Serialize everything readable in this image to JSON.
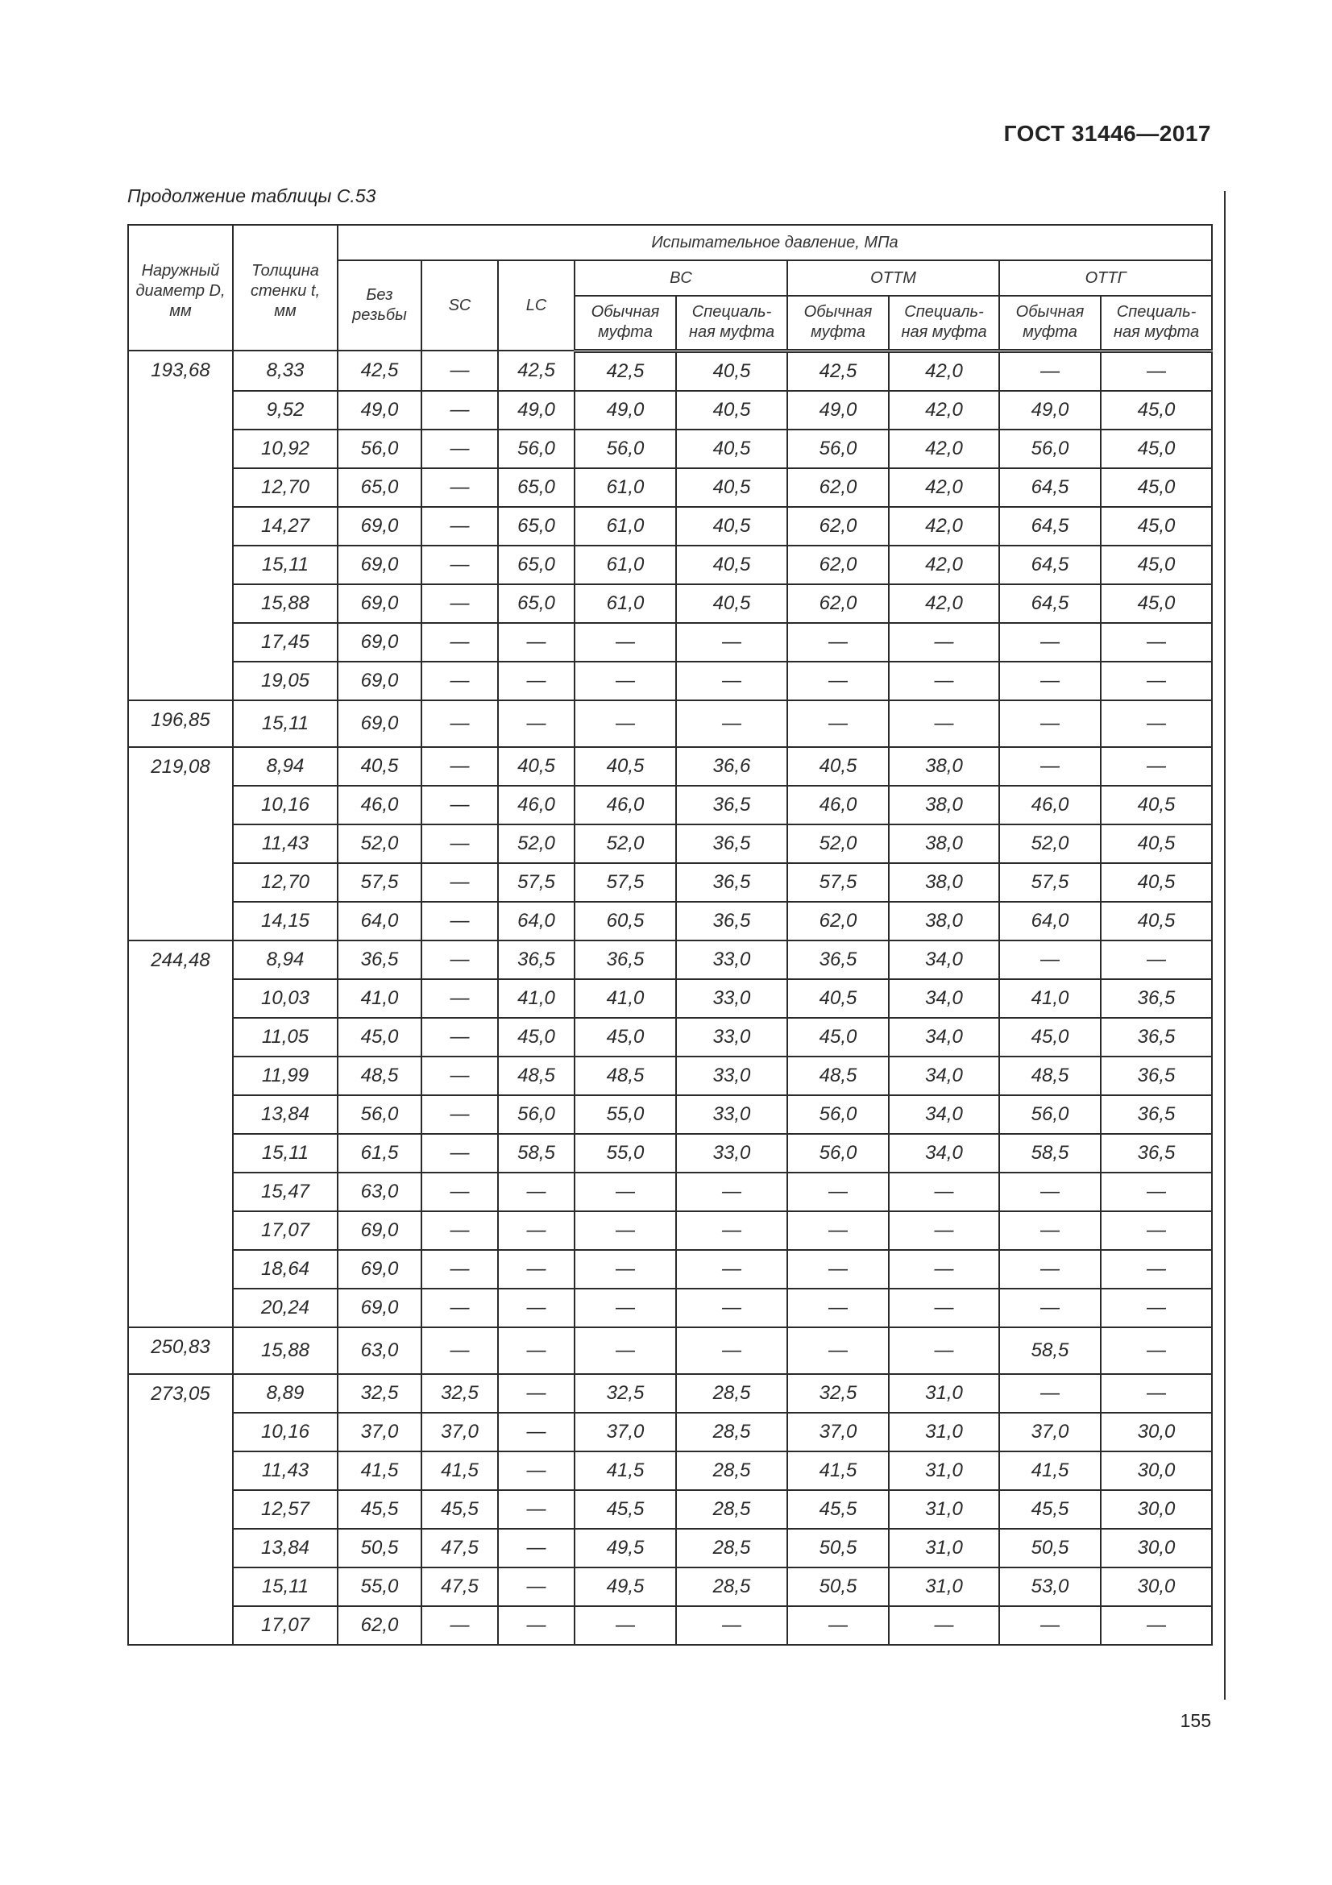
{
  "header": {
    "doc_code": "ГОСТ 31446—2017",
    "caption": "Продолжение таблицы С.53"
  },
  "table": {
    "col_diameter": "Наружный диаметр D, мм",
    "col_thickness": "Толщина стенки t, мм",
    "col_group_pressure": "Испытательное давление, МПа",
    "col_plain": "Без резьбы",
    "col_sc": "SC",
    "col_lc": "LC",
    "group_bc": "BC",
    "group_ottm": "ОТТМ",
    "group_ottg": "ОТТГ",
    "sub_regular": "Обычная муфта",
    "sub_special": "Специаль-ная муфта",
    "groups": [
      {
        "diameter": "193,68",
        "rows": [
          [
            "8,33",
            "42,5",
            "—",
            "42,5",
            "42,5",
            "40,5",
            "42,5",
            "42,0",
            "—",
            "—"
          ],
          [
            "9,52",
            "49,0",
            "—",
            "49,0",
            "49,0",
            "40,5",
            "49,0",
            "42,0",
            "49,0",
            "45,0"
          ],
          [
            "10,92",
            "56,0",
            "—",
            "56,0",
            "56,0",
            "40,5",
            "56,0",
            "42,0",
            "56,0",
            "45,0"
          ],
          [
            "12,70",
            "65,0",
            "—",
            "65,0",
            "61,0",
            "40,5",
            "62,0",
            "42,0",
            "64,5",
            "45,0"
          ],
          [
            "14,27",
            "69,0",
            "—",
            "65,0",
            "61,0",
            "40,5",
            "62,0",
            "42,0",
            "64,5",
            "45,0"
          ],
          [
            "15,11",
            "69,0",
            "—",
            "65,0",
            "61,0",
            "40,5",
            "62,0",
            "42,0",
            "64,5",
            "45,0"
          ],
          [
            "15,88",
            "69,0",
            "—",
            "65,0",
            "61,0",
            "40,5",
            "62,0",
            "42,0",
            "64,5",
            "45,0"
          ],
          [
            "17,45",
            "69,0",
            "—",
            "—",
            "—",
            "—",
            "—",
            "—",
            "—",
            "—"
          ],
          [
            "19,05",
            "69,0",
            "—",
            "—",
            "—",
            "—",
            "—",
            "—",
            "—",
            "—"
          ]
        ]
      },
      {
        "diameter": "196,85",
        "rows": [
          [
            "15,11",
            "69,0",
            "—",
            "—",
            "—",
            "—",
            "—",
            "—",
            "—",
            "—"
          ]
        ]
      },
      {
        "diameter": "219,08",
        "rows": [
          [
            "8,94",
            "40,5",
            "—",
            "40,5",
            "40,5",
            "36,6",
            "40,5",
            "38,0",
            "—",
            "—"
          ],
          [
            "10,16",
            "46,0",
            "—",
            "46,0",
            "46,0",
            "36,5",
            "46,0",
            "38,0",
            "46,0",
            "40,5"
          ],
          [
            "11,43",
            "52,0",
            "—",
            "52,0",
            "52,0",
            "36,5",
            "52,0",
            "38,0",
            "52,0",
            "40,5"
          ],
          [
            "12,70",
            "57,5",
            "—",
            "57,5",
            "57,5",
            "36,5",
            "57,5",
            "38,0",
            "57,5",
            "40,5"
          ],
          [
            "14,15",
            "64,0",
            "—",
            "64,0",
            "60,5",
            "36,5",
            "62,0",
            "38,0",
            "64,0",
            "40,5"
          ]
        ]
      },
      {
        "diameter": "244,48",
        "rows": [
          [
            "8,94",
            "36,5",
            "—",
            "36,5",
            "36,5",
            "33,0",
            "36,5",
            "34,0",
            "—",
            "—"
          ],
          [
            "10,03",
            "41,0",
            "—",
            "41,0",
            "41,0",
            "33,0",
            "40,5",
            "34,0",
            "41,0",
            "36,5"
          ],
          [
            "11,05",
            "45,0",
            "—",
            "45,0",
            "45,0",
            "33,0",
            "45,0",
            "34,0",
            "45,0",
            "36,5"
          ],
          [
            "11,99",
            "48,5",
            "—",
            "48,5",
            "48,5",
            "33,0",
            "48,5",
            "34,0",
            "48,5",
            "36,5"
          ],
          [
            "13,84",
            "56,0",
            "—",
            "56,0",
            "55,0",
            "33,0",
            "56,0",
            "34,0",
            "56,0",
            "36,5"
          ],
          [
            "15,11",
            "61,5",
            "—",
            "58,5",
            "55,0",
            "33,0",
            "56,0",
            "34,0",
            "58,5",
            "36,5"
          ],
          [
            "15,47",
            "63,0",
            "—",
            "—",
            "—",
            "—",
            "—",
            "—",
            "—",
            "—"
          ],
          [
            "17,07",
            "69,0",
            "—",
            "—",
            "—",
            "—",
            "—",
            "—",
            "—",
            "—"
          ],
          [
            "18,64",
            "69,0",
            "—",
            "—",
            "—",
            "—",
            "—",
            "—",
            "—",
            "—"
          ],
          [
            "20,24",
            "69,0",
            "—",
            "—",
            "—",
            "—",
            "—",
            "—",
            "—",
            "—"
          ]
        ]
      },
      {
        "diameter": "250,83",
        "rows": [
          [
            "15,88",
            "63,0",
            "—",
            "—",
            "—",
            "—",
            "—",
            "—",
            "58,5",
            "—"
          ]
        ]
      },
      {
        "diameter": "273,05",
        "rows": [
          [
            "8,89",
            "32,5",
            "32,5",
            "—",
            "32,5",
            "28,5",
            "32,5",
            "31,0",
            "—",
            "—"
          ],
          [
            "10,16",
            "37,0",
            "37,0",
            "—",
            "37,0",
            "28,5",
            "37,0",
            "31,0",
            "37,0",
            "30,0"
          ],
          [
            "11,43",
            "41,5",
            "41,5",
            "—",
            "41,5",
            "28,5",
            "41,5",
            "31,0",
            "41,5",
            "30,0"
          ],
          [
            "12,57",
            "45,5",
            "45,5",
            "—",
            "45,5",
            "28,5",
            "45,5",
            "31,0",
            "45,5",
            "30,0"
          ],
          [
            "13,84",
            "50,5",
            "47,5",
            "—",
            "49,5",
            "28,5",
            "50,5",
            "31,0",
            "50,5",
            "30,0"
          ],
          [
            "15,11",
            "55,0",
            "47,5",
            "—",
            "49,5",
            "28,5",
            "50,5",
            "31,0",
            "53,0",
            "30,0"
          ],
          [
            "17,07",
            "62,0",
            "—",
            "—",
            "—",
            "—",
            "—",
            "—",
            "—",
            "—"
          ]
        ]
      }
    ]
  },
  "footer": {
    "page_number": "155"
  }
}
